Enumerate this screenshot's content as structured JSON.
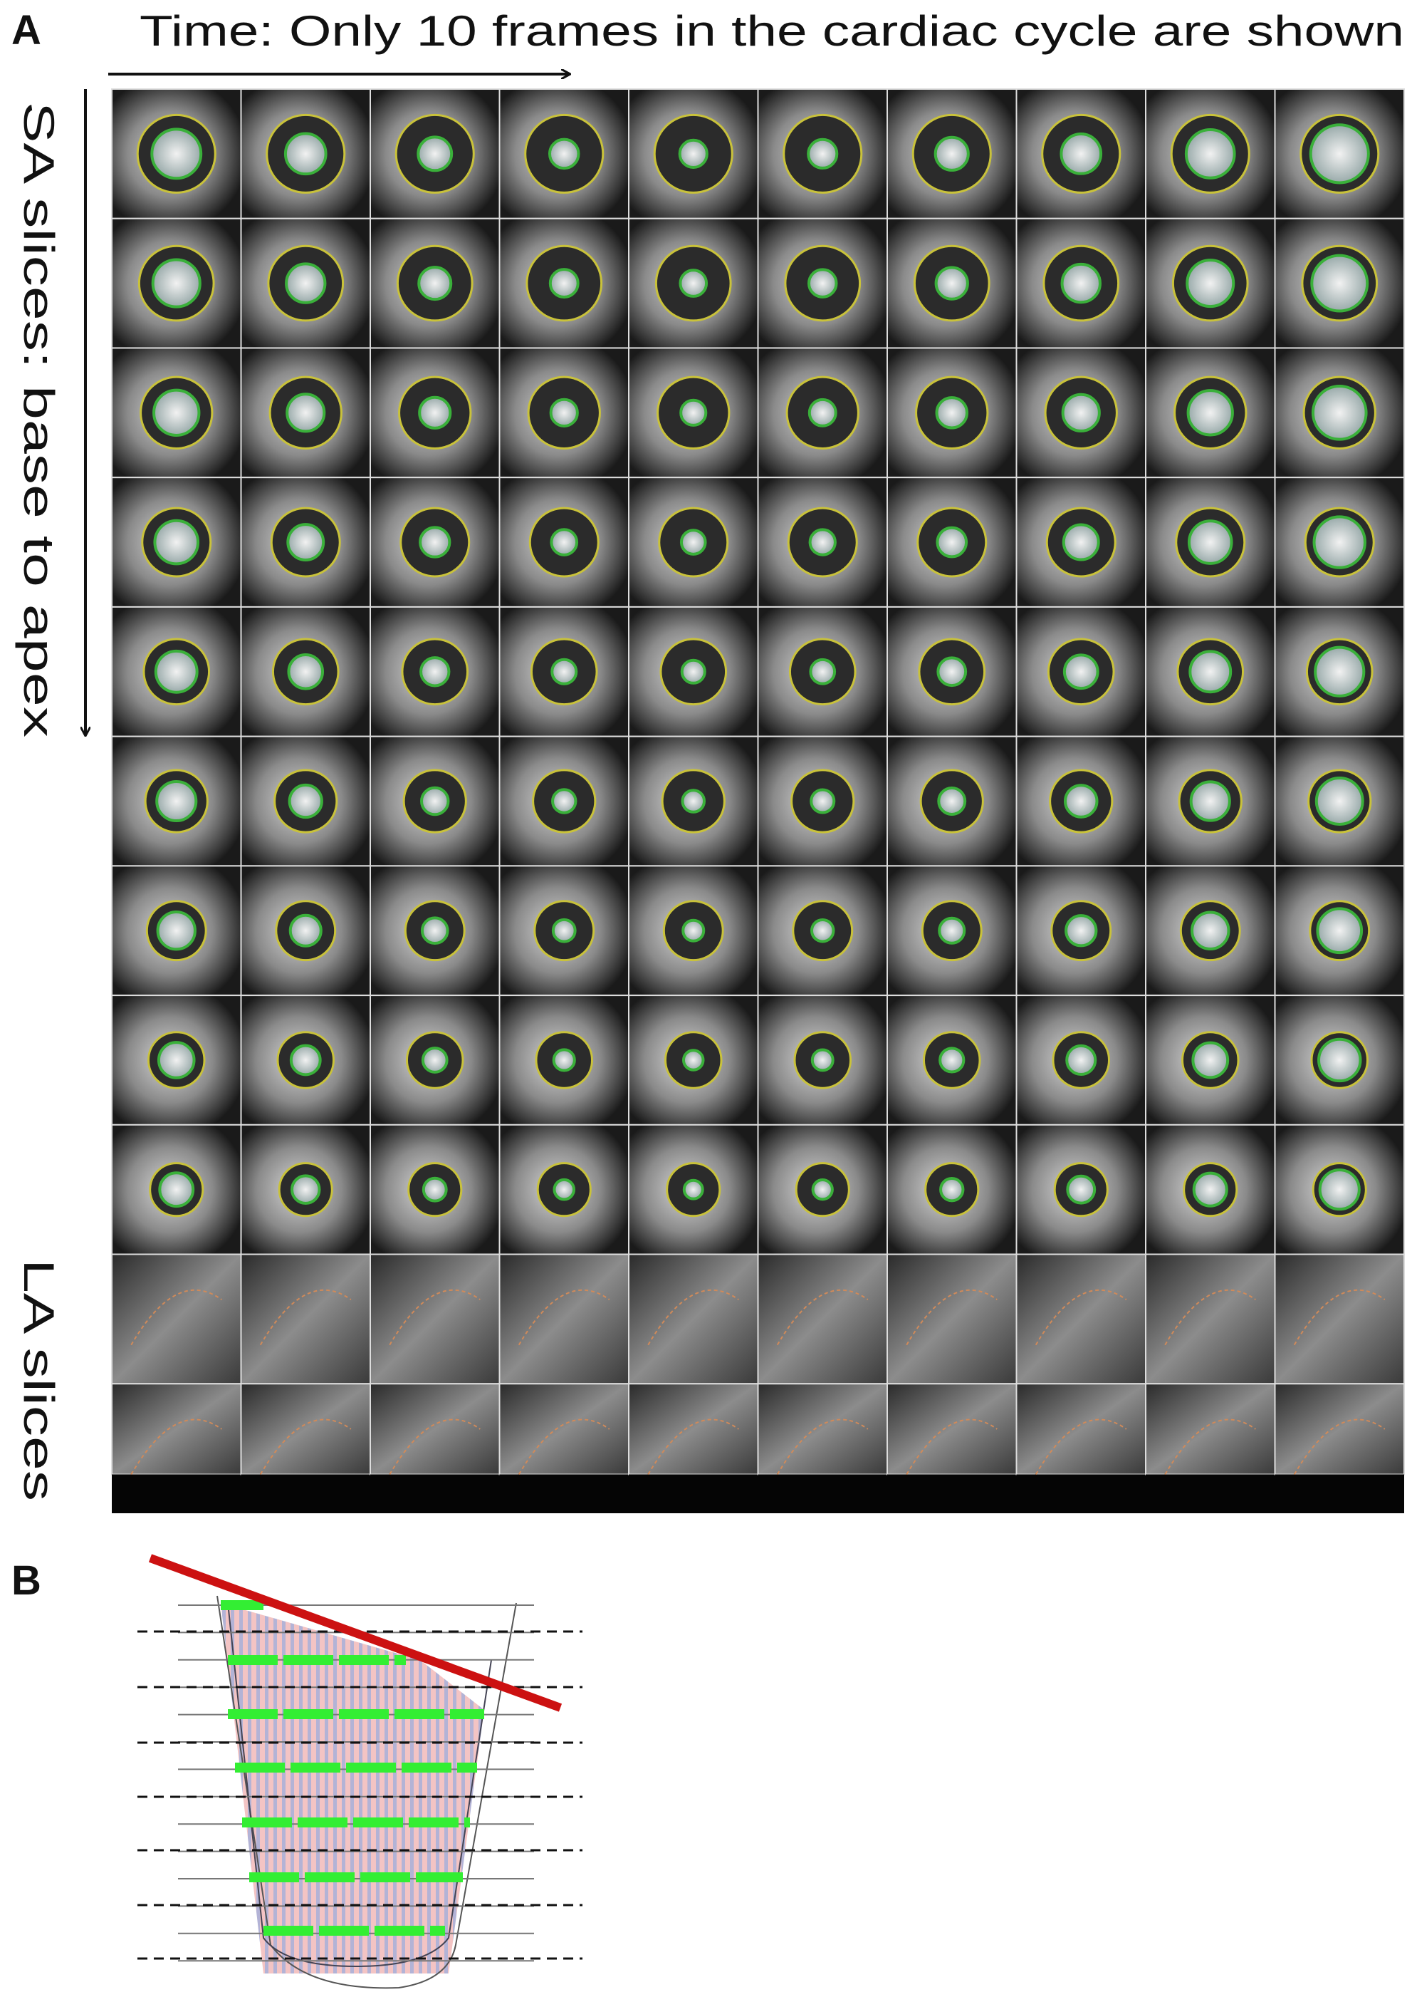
{
  "panel_a": {
    "label": "A",
    "time_label": "Time: Only 10 frames in the cardiac cycle are shown",
    "sa_label": "SA slices: base to apex",
    "la_label": "LA slices"
  },
  "panel_b": {
    "label": "B"
  }
}
